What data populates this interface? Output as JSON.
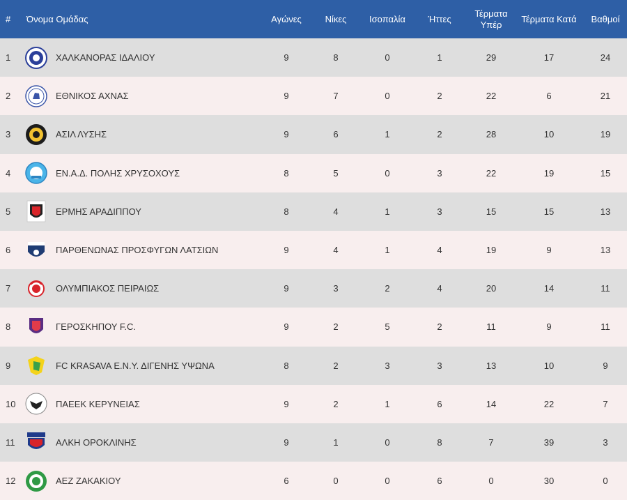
{
  "headers": {
    "rank": "#",
    "team": "Όνομα Ομάδας",
    "played": "Αγώνες",
    "wins": "Νίκες",
    "draws": "Ισοπαλία",
    "losses": "Ήττες",
    "goals_for": "Τέρματα Υπέρ",
    "goals_against": "Τέρματα Κατά",
    "points": "Βαθμοί"
  },
  "colors": {
    "header_bg": "#2e5fa6",
    "row_odd": "#dedede",
    "row_even": "#f8eeee"
  },
  "rows": [
    {
      "rank": "1",
      "team": "ΧΑΛΚΑΝΟΡΑΣ ΙΔΑΛΙΟΥ",
      "logo": "chalkanoras-crest-icon",
      "played": "9",
      "wins": "8",
      "draws": "0",
      "losses": "1",
      "gf": "29",
      "ga": "17",
      "pts": "24"
    },
    {
      "rank": "2",
      "team": "ΕΘΝΙΚΟΣ ΑΧΝΑΣ",
      "logo": "ethnikos-achnas-crest-icon",
      "played": "9",
      "wins": "7",
      "draws": "0",
      "losses": "2",
      "gf": "22",
      "ga": "6",
      "pts": "21"
    },
    {
      "rank": "3",
      "team": "ΑΣΙΛ ΛΥΣΗΣ",
      "logo": "asil-lysis-crest-icon",
      "played": "9",
      "wins": "6",
      "draws": "1",
      "losses": "2",
      "gf": "28",
      "ga": "10",
      "pts": "19"
    },
    {
      "rank": "4",
      "team": "ΕΝ.Α.Δ. ΠΟΛΗΣ ΧΡΥΣΟΧΟΥΣ",
      "logo": "enad-polis-crest-icon",
      "played": "8",
      "wins": "5",
      "draws": "0",
      "losses": "3",
      "gf": "22",
      "ga": "19",
      "pts": "15"
    },
    {
      "rank": "5",
      "team": "ΕΡΜΗΣ ΑΡΑΔΙΠΠΟΥ",
      "logo": "ermis-aradippou-crest-icon",
      "played": "8",
      "wins": "4",
      "draws": "1",
      "losses": "3",
      "gf": "15",
      "ga": "15",
      "pts": "13"
    },
    {
      "rank": "6",
      "team": "ΠΑΡΘΕΝΩΝΑΣ ΠΡΟΣΦΥΓΩΝ ΛΑΤΣΙΩΝ",
      "logo": "parthenonas-crest-icon",
      "played": "9",
      "wins": "4",
      "draws": "1",
      "losses": "4",
      "gf": "19",
      "ga": "9",
      "pts": "13"
    },
    {
      "rank": "7",
      "team": "ΟΛΥΜΠΙΑΚΟΣ ΠΕΙΡΑΙΩΣ",
      "logo": "olympiakos-crest-icon",
      "played": "9",
      "wins": "3",
      "draws": "2",
      "losses": "4",
      "gf": "20",
      "ga": "14",
      "pts": "11"
    },
    {
      "rank": "8",
      "team": "ΓΕΡΟΣΚΗΠΟΥ F.C.",
      "logo": "geroskipou-crest-icon",
      "played": "9",
      "wins": "2",
      "draws": "5",
      "losses": "2",
      "gf": "11",
      "ga": "9",
      "pts": "11"
    },
    {
      "rank": "9",
      "team": "FC KRASAVA Ε.Ν.Υ. ΔΙΓΕΝΗΣ ΥΨΩΝΑ",
      "logo": "krasava-crest-icon",
      "played": "8",
      "wins": "2",
      "draws": "3",
      "losses": "3",
      "gf": "13",
      "ga": "10",
      "pts": "9"
    },
    {
      "rank": "10",
      "team": "ΠΑΕΕΚ ΚΕΡΥΝΕΙΑΣ",
      "logo": "paeek-crest-icon",
      "played": "9",
      "wins": "2",
      "draws": "1",
      "losses": "6",
      "gf": "14",
      "ga": "22",
      "pts": "7"
    },
    {
      "rank": "11",
      "team": "ΑΛΚΗ ΟΡΟΚΛΙΝΗΣ",
      "logo": "alki-oroklinis-crest-icon",
      "played": "9",
      "wins": "1",
      "draws": "0",
      "losses": "8",
      "gf": "7",
      "ga": "39",
      "pts": "3"
    },
    {
      "rank": "12",
      "team": "ΑΕΖ ΖΑΚΑΚΙΟΥ",
      "logo": "aez-zakakiou-crest-icon",
      "played": "6",
      "wins": "0",
      "draws": "0",
      "losses": "6",
      "gf": "0",
      "ga": "30",
      "pts": "0"
    }
  ]
}
